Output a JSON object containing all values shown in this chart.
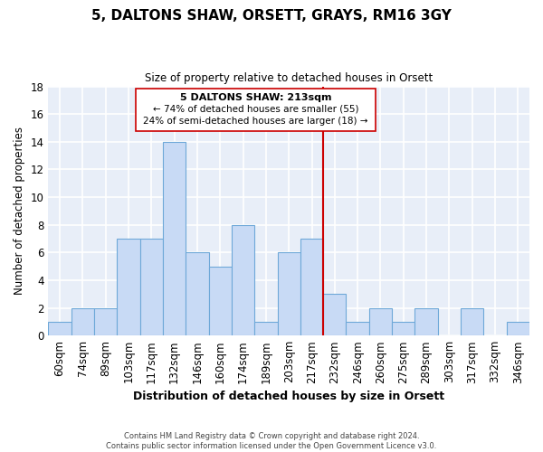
{
  "title": "5, DALTONS SHAW, ORSETT, GRAYS, RM16 3GY",
  "subtitle": "Size of property relative to detached houses in Orsett",
  "xlabel": "Distribution of detached houses by size in Orsett",
  "ylabel": "Number of detached properties",
  "bar_color": "#c8daf5",
  "bar_edge_color": "#6ea8d8",
  "bin_labels": [
    "60sqm",
    "74sqm",
    "89sqm",
    "103sqm",
    "117sqm",
    "132sqm",
    "146sqm",
    "160sqm",
    "174sqm",
    "189sqm",
    "203sqm",
    "217sqm",
    "232sqm",
    "246sqm",
    "260sqm",
    "275sqm",
    "289sqm",
    "303sqm",
    "317sqm",
    "332sqm",
    "346sqm"
  ],
  "bar_heights": [
    1,
    2,
    2,
    7,
    7,
    14,
    6,
    5,
    8,
    1,
    6,
    7,
    3,
    1,
    2,
    1,
    2,
    0,
    2,
    0,
    1
  ],
  "vline_x": 11.5,
  "vline_color": "#cc0000",
  "annotation_title": "5 DALTONS SHAW: 213sqm",
  "annotation_line1": "← 74% of detached houses are smaller (55)",
  "annotation_line2": "24% of semi-detached houses are larger (18) →",
  "ylim": [
    0,
    18
  ],
  "yticks": [
    0,
    2,
    4,
    6,
    8,
    10,
    12,
    14,
    16,
    18
  ],
  "grid_color": "#cccccc",
  "background_color": "#e8eef8",
  "footer1": "Contains HM Land Registry data © Crown copyright and database right 2024.",
  "footer2": "Contains public sector information licensed under the Open Government Licence v3.0."
}
